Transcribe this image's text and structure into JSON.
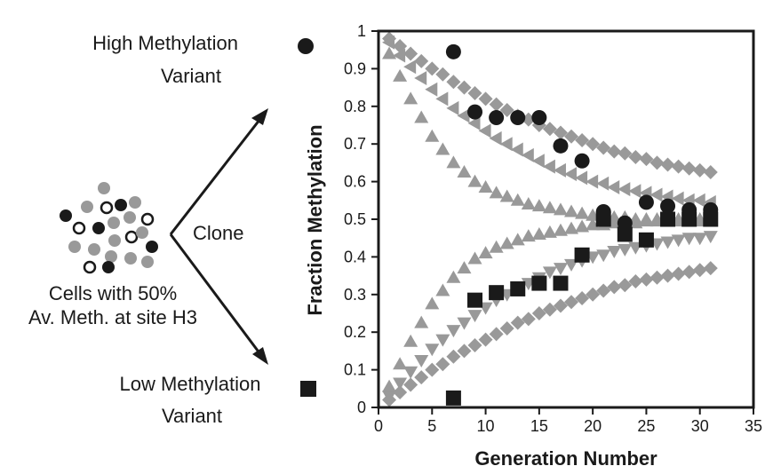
{
  "diagram": {
    "high_label": [
      "High Methylation",
      "Variant"
    ],
    "low_label": [
      "Low Methylation",
      "Variant"
    ],
    "clone_label": "Clone",
    "cells_label": [
      "Cells with 50%",
      "Av. Meth. at site H3"
    ]
  },
  "colors": {
    "dark": "#1a1a1a",
    "gray": "#999999",
    "white": "#ffffff"
  },
  "chart_data": {
    "type": "scatter",
    "xlabel": "Generation Number",
    "ylabel": "Fraction Methylation",
    "xlim": [
      0,
      35
    ],
    "ylim": [
      0,
      1
    ],
    "xticks": [
      0,
      5,
      10,
      15,
      20,
      25,
      30,
      35
    ],
    "yticks": [
      0,
      0.1,
      0.2,
      0.3,
      0.4,
      0.5,
      0.6,
      0.7,
      0.8,
      0.9,
      1
    ],
    "ytick_labels": [
      "0",
      "0.1",
      "0.2",
      "0.3",
      "0.4",
      "0.5",
      "0.6",
      "0.7",
      "0.8",
      "0.9",
      "1"
    ],
    "grid": false,
    "series": [
      {
        "marker": "circle",
        "color": "#1a1a1a",
        "x": [
          7,
          9,
          11,
          13,
          15,
          17,
          19,
          21,
          23,
          25,
          27,
          29,
          31
        ],
        "y": [
          0.945,
          0.785,
          0.77,
          0.77,
          0.77,
          0.695,
          0.655,
          0.52,
          0.49,
          0.545,
          0.535,
          0.525,
          0.525
        ]
      },
      {
        "marker": "square",
        "color": "#1a1a1a",
        "x": [
          7,
          9,
          11,
          13,
          15,
          17,
          19,
          21,
          23,
          25,
          27,
          29,
          31
        ],
        "y": [
          0.025,
          0.285,
          0.305,
          0.315,
          0.33,
          0.33,
          0.405,
          0.5,
          0.46,
          0.445,
          0.5,
          0.5,
          0.5
        ]
      },
      {
        "marker": "diamond",
        "color": "#999999",
        "x": [
          1,
          2,
          3,
          4,
          5,
          6,
          7,
          8,
          9,
          10,
          11,
          12,
          13,
          14,
          15,
          16,
          17,
          18,
          19,
          20,
          21,
          22,
          23,
          24,
          25,
          26,
          27,
          28,
          29,
          30,
          31
        ],
        "y": [
          0.98,
          0.96,
          0.94,
          0.92,
          0.9,
          0.885,
          0.865,
          0.85,
          0.835,
          0.82,
          0.805,
          0.79,
          0.775,
          0.765,
          0.75,
          0.74,
          0.73,
          0.72,
          0.71,
          0.7,
          0.69,
          0.68,
          0.675,
          0.665,
          0.66,
          0.65,
          0.645,
          0.64,
          0.635,
          0.63,
          0.625
        ]
      },
      {
        "marker": "diamond",
        "color": "#999999",
        "x": [
          1,
          2,
          3,
          4,
          5,
          6,
          7,
          8,
          9,
          10,
          11,
          12,
          13,
          14,
          15,
          16,
          17,
          18,
          19,
          20,
          21,
          22,
          23,
          24,
          25,
          26,
          27,
          28,
          29,
          30,
          31
        ],
        "y": [
          0.02,
          0.04,
          0.06,
          0.08,
          0.1,
          0.115,
          0.135,
          0.15,
          0.165,
          0.18,
          0.195,
          0.21,
          0.225,
          0.235,
          0.25,
          0.26,
          0.27,
          0.28,
          0.29,
          0.3,
          0.31,
          0.32,
          0.325,
          0.335,
          0.34,
          0.345,
          0.35,
          0.355,
          0.36,
          0.365,
          0.37
        ]
      },
      {
        "marker": "triangle-left",
        "color": "#999999",
        "x": [
          1,
          2,
          3,
          4,
          5,
          6,
          7,
          8,
          9,
          10,
          11,
          12,
          13,
          14,
          15,
          16,
          17,
          18,
          19,
          20,
          21,
          22,
          23,
          24,
          25,
          26,
          27,
          28,
          29,
          30,
          31
        ],
        "y": [
          0.97,
          0.935,
          0.905,
          0.875,
          0.845,
          0.82,
          0.795,
          0.775,
          0.755,
          0.735,
          0.715,
          0.7,
          0.685,
          0.67,
          0.655,
          0.64,
          0.63,
          0.62,
          0.61,
          0.6,
          0.595,
          0.585,
          0.58,
          0.575,
          0.57,
          0.565,
          0.56,
          0.555,
          0.55,
          0.55,
          0.545
        ]
      },
      {
        "marker": "triangle-down",
        "color": "#999999",
        "x": [
          1,
          2,
          3,
          4,
          5,
          6,
          7,
          8,
          9,
          10,
          11,
          12,
          13,
          14,
          15,
          16,
          17,
          18,
          19,
          20,
          21,
          22,
          23,
          24,
          25,
          26,
          27,
          28,
          29,
          30,
          31
        ],
        "y": [
          0.03,
          0.065,
          0.095,
          0.125,
          0.155,
          0.18,
          0.205,
          0.225,
          0.245,
          0.265,
          0.285,
          0.3,
          0.315,
          0.33,
          0.345,
          0.36,
          0.37,
          0.38,
          0.39,
          0.4,
          0.405,
          0.415,
          0.42,
          0.425,
          0.43,
          0.435,
          0.44,
          0.445,
          0.45,
          0.45,
          0.455
        ]
      },
      {
        "marker": "triangle-up",
        "color": "#999999",
        "x": [
          1,
          2,
          3,
          4,
          5,
          6,
          7,
          8,
          9,
          10,
          11,
          12,
          13,
          14,
          15,
          16,
          17,
          18,
          19,
          20,
          21,
          22,
          23,
          24,
          25,
          26,
          27,
          28,
          29,
          30,
          31
        ],
        "y": [
          0.94,
          0.88,
          0.82,
          0.77,
          0.72,
          0.685,
          0.65,
          0.625,
          0.6,
          0.585,
          0.57,
          0.56,
          0.55,
          0.54,
          0.535,
          0.53,
          0.525,
          0.52,
          0.515,
          0.51,
          0.51,
          0.505,
          0.505,
          0.5,
          0.5,
          0.5,
          0.5,
          0.5,
          0.5,
          0.5,
          0.5
        ]
      },
      {
        "marker": "triangle-up",
        "color": "#999999",
        "x": [
          1,
          2,
          3,
          4,
          5,
          6,
          7,
          8,
          9,
          10,
          11,
          12,
          13,
          14,
          15,
          16,
          17,
          18,
          19,
          20,
          21,
          22,
          23,
          24,
          25,
          26,
          27,
          28,
          29,
          30,
          31
        ],
        "y": [
          0.055,
          0.115,
          0.175,
          0.225,
          0.275,
          0.31,
          0.345,
          0.37,
          0.395,
          0.41,
          0.425,
          0.435,
          0.445,
          0.455,
          0.46,
          0.465,
          0.47,
          0.475,
          0.48,
          0.485,
          0.485,
          0.49,
          0.49,
          0.49,
          0.495,
          0.495,
          0.495,
          0.495,
          0.495,
          0.495,
          0.495
        ]
      }
    ]
  }
}
